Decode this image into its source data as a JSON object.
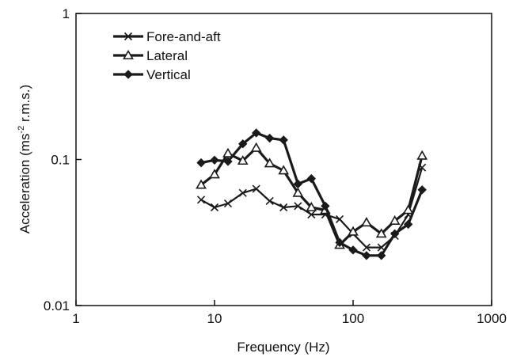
{
  "chart_data": {
    "type": "line",
    "xscale": "log",
    "yscale": "log",
    "xlim": [
      1,
      1000
    ],
    "ylim": [
      0.01,
      1
    ],
    "xlabel": "Frequency (Hz)",
    "ylabel": {
      "pre": "Acceleration (ms",
      "sup": "-2",
      "post": " r.m.s.)"
    },
    "xticks": [
      1,
      10,
      100,
      1000
    ],
    "xtick_labels": [
      "1",
      "10",
      "100",
      "1000"
    ],
    "yticks": [
      0.01,
      0.1,
      1
    ],
    "ytick_labels": [
      "0.01",
      "0.1",
      "1"
    ],
    "grid": false,
    "legend_position": "top-left",
    "x": [
      8,
      10,
      12.5,
      16,
      20,
      25,
      31.5,
      40,
      50,
      63,
      80,
      100,
      125,
      160,
      200,
      250,
      315
    ],
    "series": [
      {
        "name": "Fore-and-aft",
        "marker": "x",
        "values": [
          0.053,
          0.047,
          0.05,
          0.059,
          0.063,
          0.052,
          0.047,
          0.048,
          0.042,
          0.042,
          0.039,
          0.031,
          0.025,
          0.025,
          0.03,
          0.042,
          0.088
        ]
      },
      {
        "name": "Lateral",
        "marker": "open-triangle",
        "values": [
          0.067,
          0.079,
          0.11,
          0.098,
          0.12,
          0.094,
          0.084,
          0.059,
          0.047,
          0.045,
          0.026,
          0.032,
          0.037,
          0.031,
          0.038,
          0.045,
          0.106
        ]
      },
      {
        "name": "Vertical",
        "marker": "filled-diamond",
        "values": [
          0.095,
          0.099,
          0.097,
          0.128,
          0.152,
          0.14,
          0.136,
          0.068,
          0.074,
          0.048,
          0.027,
          0.024,
          0.022,
          0.022,
          0.031,
          0.036,
          0.062
        ]
      }
    ]
  }
}
